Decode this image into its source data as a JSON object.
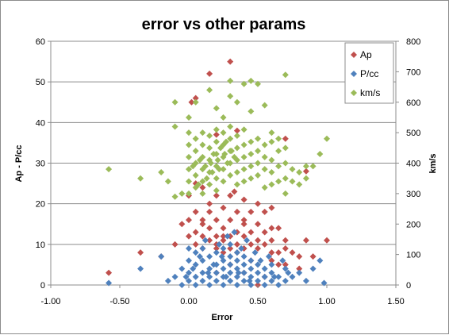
{
  "chart_data": {
    "type": "scatter",
    "title": "error vs other params",
    "xlabel": "Error",
    "ylabel": "Ap - P/cc",
    "y2label": "km/s",
    "xlim": [
      -1.0,
      1.5
    ],
    "ylim": [
      0,
      60
    ],
    "y2lim": [
      0,
      800
    ],
    "x_ticks": [
      "-1.00",
      "-0.50",
      "0.00",
      "0.50",
      "1.00",
      "1.50"
    ],
    "y_ticks": [
      "0",
      "10",
      "20",
      "30",
      "40",
      "50",
      "60"
    ],
    "y2_ticks": [
      "0",
      "100",
      "200",
      "300",
      "400",
      "500",
      "600",
      "700",
      "800"
    ],
    "grid": "horizontal",
    "legend_position": "top-right",
    "series": [
      {
        "name": "Ap",
        "axis": "primary",
        "color": "#C0504D",
        "points": [
          [
            0.3,
            55
          ],
          [
            0.15,
            52
          ],
          [
            0.05,
            46
          ],
          [
            0.02,
            45
          ],
          [
            0.35,
            38
          ],
          [
            0.2,
            37
          ],
          [
            0.7,
            36
          ],
          [
            0.85,
            28
          ],
          [
            0.05,
            25
          ],
          [
            0.1,
            24
          ],
          [
            0.2,
            22
          ],
          [
            0.3,
            22
          ],
          [
            0.4,
            21
          ],
          [
            0.6,
            19
          ],
          [
            0.15,
            20
          ],
          [
            0.25,
            19
          ],
          [
            0.35,
            18
          ],
          [
            0.45,
            18
          ],
          [
            0.55,
            18
          ],
          [
            0.05,
            18
          ],
          [
            0.0,
            16
          ],
          [
            0.1,
            16
          ],
          [
            0.2,
            16
          ],
          [
            0.3,
            16
          ],
          [
            0.4,
            15
          ],
          [
            0.5,
            15
          ],
          [
            0.65,
            14
          ],
          [
            -0.05,
            15
          ],
          [
            0.15,
            14
          ],
          [
            0.25,
            14
          ],
          [
            0.35,
            13
          ],
          [
            0.45,
            13
          ],
          [
            0.55,
            13
          ],
          [
            0.05,
            13
          ],
          [
            0.0,
            12
          ],
          [
            0.1,
            12
          ],
          [
            0.2,
            12
          ],
          [
            0.3,
            12
          ],
          [
            0.4,
            12
          ],
          [
            0.5,
            11
          ],
          [
            0.6,
            11
          ],
          [
            0.7,
            11
          ],
          [
            0.85,
            11
          ],
          [
            1.0,
            11
          ],
          [
            0.15,
            11
          ],
          [
            0.25,
            11
          ],
          [
            0.35,
            10
          ],
          [
            0.45,
            10
          ],
          [
            0.55,
            10
          ],
          [
            -0.1,
            10
          ],
          [
            0.05,
            10
          ],
          [
            0.1,
            9
          ],
          [
            0.2,
            9
          ],
          [
            0.3,
            9
          ],
          [
            0.4,
            9
          ],
          [
            0.5,
            9
          ],
          [
            0.6,
            8
          ],
          [
            0.65,
            8
          ],
          [
            0.75,
            8
          ],
          [
            -0.35,
            8
          ],
          [
            -0.2,
            7
          ],
          [
            0.8,
            7
          ],
          [
            0.9,
            7
          ],
          [
            0.25,
            8
          ],
          [
            -0.58,
            3
          ],
          [
            0.6,
            6
          ],
          [
            0.7,
            5
          ],
          [
            0.8,
            4
          ],
          [
            0.2,
            3
          ],
          [
            0.4,
            3
          ],
          [
            0.5,
            0
          ],
          [
            0.55,
            2
          ],
          [
            0.3,
            5
          ],
          [
            0.45,
            6
          ],
          [
            0.35,
            8
          ],
          [
            0.2,
            10
          ],
          [
            0.1,
            15
          ],
          [
            0.5,
            20
          ],
          [
            0.33,
            23
          ],
          [
            0.0,
            22
          ],
          [
            0.15,
            18
          ],
          [
            0.4,
            16
          ],
          [
            0.25,
            12
          ],
          [
            0.6,
            14
          ],
          [
            0.7,
            9
          ],
          [
            0.65,
            5
          ]
        ]
      },
      {
        "name": "P/cc",
        "axis": "primary",
        "color": "#4F81BD",
        "points": [
          [
            -0.58,
            0.5
          ],
          [
            -0.35,
            4
          ],
          [
            -0.2,
            7
          ],
          [
            -0.15,
            1
          ],
          [
            -0.1,
            2
          ],
          [
            -0.05,
            4
          ],
          [
            -0.05,
            0
          ],
          [
            0.0,
            1
          ],
          [
            0.0,
            3
          ],
          [
            0.0,
            6
          ],
          [
            0.0,
            9
          ],
          [
            0.05,
            0
          ],
          [
            0.05,
            2
          ],
          [
            0.05,
            5
          ],
          [
            0.05,
            8
          ],
          [
            0.1,
            1
          ],
          [
            0.1,
            3
          ],
          [
            0.1,
            6
          ],
          [
            0.1,
            9
          ],
          [
            0.15,
            0
          ],
          [
            0.15,
            2
          ],
          [
            0.15,
            4
          ],
          [
            0.15,
            7
          ],
          [
            0.2,
            1
          ],
          [
            0.2,
            3
          ],
          [
            0.2,
            5
          ],
          [
            0.2,
            8
          ],
          [
            0.25,
            0
          ],
          [
            0.25,
            2
          ],
          [
            0.25,
            4
          ],
          [
            0.25,
            6
          ],
          [
            0.25,
            9
          ],
          [
            0.3,
            1
          ],
          [
            0.3,
            3
          ],
          [
            0.3,
            5
          ],
          [
            0.3,
            7
          ],
          [
            0.3,
            10
          ],
          [
            0.35,
            0
          ],
          [
            0.35,
            2
          ],
          [
            0.35,
            4
          ],
          [
            0.35,
            6
          ],
          [
            0.35,
            8
          ],
          [
            0.4,
            1
          ],
          [
            0.4,
            3
          ],
          [
            0.4,
            5
          ],
          [
            0.4,
            7
          ],
          [
            0.45,
            0
          ],
          [
            0.45,
            2
          ],
          [
            0.45,
            4
          ],
          [
            0.45,
            6
          ],
          [
            0.5,
            1
          ],
          [
            0.5,
            3
          ],
          [
            0.5,
            5
          ],
          [
            0.55,
            0
          ],
          [
            0.55,
            2
          ],
          [
            0.55,
            4
          ],
          [
            0.6,
            1
          ],
          [
            0.6,
            3
          ],
          [
            0.6,
            5
          ],
          [
            0.65,
            0
          ],
          [
            0.65,
            2
          ],
          [
            0.7,
            1
          ],
          [
            0.7,
            4
          ],
          [
            0.75,
            2
          ],
          [
            0.8,
            3
          ],
          [
            0.85,
            1
          ],
          [
            0.9,
            4
          ],
          [
            0.95,
            6
          ],
          [
            0.98,
            0.5
          ],
          [
            0.33,
            13
          ],
          [
            0.28,
            12
          ],
          [
            0.12,
            11
          ],
          [
            0.42,
            11
          ],
          [
            0.22,
            10
          ],
          [
            0.03,
            4
          ],
          [
            0.08,
            7
          ],
          [
            0.18,
            5
          ],
          [
            0.27,
            2
          ],
          [
            0.38,
            9
          ],
          [
            0.48,
            8
          ],
          [
            0.52,
            6
          ],
          [
            0.58,
            7
          ],
          [
            0.62,
            2
          ],
          [
            0.68,
            6
          ],
          [
            0.72,
            3
          ],
          [
            -0.02,
            2
          ],
          [
            0.14,
            3
          ],
          [
            0.36,
            3
          ],
          [
            0.44,
            1
          ],
          [
            0.24,
            7
          ]
        ]
      },
      {
        "name": "km/s",
        "axis": "secondary",
        "color": "#9BBB59",
        "points": [
          [
            -0.58,
            380
          ],
          [
            -0.35,
            350
          ],
          [
            -0.2,
            370
          ],
          [
            -0.15,
            340
          ],
          [
            -0.1,
            290
          ],
          [
            -0.05,
            300
          ],
          [
            -0.1,
            520
          ],
          [
            -0.1,
            600
          ],
          [
            0.0,
            300
          ],
          [
            0.0,
            340
          ],
          [
            0.0,
            380
          ],
          [
            0.0,
            420
          ],
          [
            0.0,
            460
          ],
          [
            0.0,
            500
          ],
          [
            0.0,
            550
          ],
          [
            0.05,
            320
          ],
          [
            0.05,
            360
          ],
          [
            0.05,
            400
          ],
          [
            0.05,
            440
          ],
          [
            0.05,
            480
          ],
          [
            0.05,
            600
          ],
          [
            0.1,
            300
          ],
          [
            0.1,
            340
          ],
          [
            0.1,
            380
          ],
          [
            0.1,
            420
          ],
          [
            0.1,
            460
          ],
          [
            0.1,
            500
          ],
          [
            0.15,
            330
          ],
          [
            0.15,
            370
          ],
          [
            0.15,
            410
          ],
          [
            0.15,
            450
          ],
          [
            0.15,
            490
          ],
          [
            0.15,
            640
          ],
          [
            0.2,
            310
          ],
          [
            0.2,
            350
          ],
          [
            0.2,
            390
          ],
          [
            0.2,
            430
          ],
          [
            0.2,
            470
          ],
          [
            0.2,
            510
          ],
          [
            0.2,
            580
          ],
          [
            0.25,
            340
          ],
          [
            0.25,
            380
          ],
          [
            0.25,
            420
          ],
          [
            0.25,
            460
          ],
          [
            0.25,
            500
          ],
          [
            0.25,
            550
          ],
          [
            0.3,
            360
          ],
          [
            0.3,
            400
          ],
          [
            0.3,
            440
          ],
          [
            0.3,
            480
          ],
          [
            0.3,
            520
          ],
          [
            0.3,
            620
          ],
          [
            0.3,
            670
          ],
          [
            0.35,
            330
          ],
          [
            0.35,
            370
          ],
          [
            0.35,
            410
          ],
          [
            0.35,
            450
          ],
          [
            0.35,
            490
          ],
          [
            0.35,
            600
          ],
          [
            0.4,
            340
          ],
          [
            0.4,
            380
          ],
          [
            0.4,
            420
          ],
          [
            0.4,
            460
          ],
          [
            0.4,
            510
          ],
          [
            0.4,
            660
          ],
          [
            0.45,
            350
          ],
          [
            0.45,
            390
          ],
          [
            0.45,
            430
          ],
          [
            0.45,
            470
          ],
          [
            0.45,
            670
          ],
          [
            0.5,
            360
          ],
          [
            0.5,
            400
          ],
          [
            0.5,
            440
          ],
          [
            0.5,
            480
          ],
          [
            0.5,
            660
          ],
          [
            0.55,
            320
          ],
          [
            0.55,
            380
          ],
          [
            0.55,
            420
          ],
          [
            0.55,
            460
          ],
          [
            0.6,
            330
          ],
          [
            0.6,
            370
          ],
          [
            0.6,
            410
          ],
          [
            0.6,
            470
          ],
          [
            0.6,
            500
          ],
          [
            0.65,
            340
          ],
          [
            0.65,
            390
          ],
          [
            0.65,
            440
          ],
          [
            0.65,
            480
          ],
          [
            0.7,
            300
          ],
          [
            0.7,
            350
          ],
          [
            0.7,
            400
          ],
          [
            0.7,
            450
          ],
          [
            0.7,
            690
          ],
          [
            0.75,
            340
          ],
          [
            0.75,
            380
          ],
          [
            0.8,
            330
          ],
          [
            0.8,
            370
          ],
          [
            0.85,
            350
          ],
          [
            0.85,
            390
          ],
          [
            0.9,
            390
          ],
          [
            0.95,
            430
          ],
          [
            1.0,
            480
          ],
          [
            0.55,
            590
          ],
          [
            0.45,
            570
          ],
          [
            0.07,
            330
          ],
          [
            0.13,
            350
          ],
          [
            0.17,
            370
          ],
          [
            0.22,
            380
          ],
          [
            0.28,
            400
          ],
          [
            0.33,
            420
          ],
          [
            0.03,
            390
          ],
          [
            0.08,
            410
          ],
          [
            0.18,
            430
          ],
          [
            0.23,
            450
          ],
          [
            0.27,
            470
          ],
          [
            0.12,
            390
          ],
          [
            0.16,
            400
          ],
          [
            0.21,
            410
          ],
          [
            0.26,
            430
          ],
          [
            0.31,
            440
          ]
        ]
      }
    ]
  }
}
